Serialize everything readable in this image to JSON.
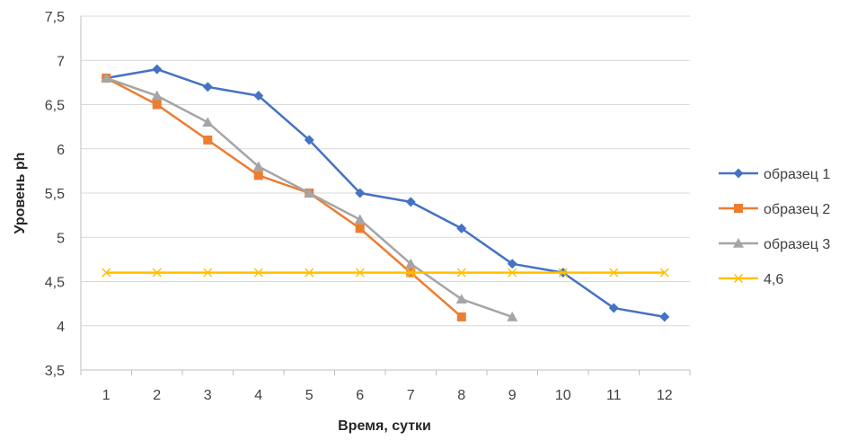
{
  "chart_data": {
    "type": "line",
    "title": "",
    "xlabel": "Время, сутки",
    "ylabel": "Уровень ph",
    "x": [
      1,
      2,
      3,
      4,
      5,
      6,
      7,
      8,
      9,
      10,
      11,
      12
    ],
    "xlim": [
      0.5,
      12.5
    ],
    "ylim": [
      3.5,
      7.5
    ],
    "yticks": [
      "3,5",
      "4",
      "4,5",
      "5",
      "5,5",
      "6",
      "6,5",
      "7",
      "7,5"
    ],
    "ytick_values": [
      3.5,
      4,
      4.5,
      5,
      5.5,
      6,
      6.5,
      7,
      7.5
    ],
    "xticks": [
      "1",
      "2",
      "3",
      "4",
      "5",
      "6",
      "7",
      "8",
      "9",
      "10",
      "11",
      "12"
    ],
    "grid": "horizontal",
    "legend_position": "right",
    "series": [
      {
        "name": "образец 1",
        "color": "#4472C4",
        "marker": "diamond",
        "values": [
          6.8,
          6.9,
          6.7,
          6.6,
          6.1,
          5.5,
          5.4,
          5.1,
          4.7,
          4.6,
          4.2,
          4.1
        ]
      },
      {
        "name": "образец 2",
        "color": "#ED7D31",
        "marker": "square",
        "values": [
          6.8,
          6.5,
          6.1,
          5.7,
          5.5,
          5.1,
          4.6,
          4.1,
          null,
          null,
          null,
          null
        ]
      },
      {
        "name": "образец 3",
        "color": "#A5A5A5",
        "marker": "triangle",
        "values": [
          6.8,
          6.6,
          6.3,
          5.8,
          5.5,
          5.2,
          4.7,
          4.3,
          4.1,
          null,
          null,
          null
        ]
      },
      {
        "name": "4,6",
        "color": "#FFC000",
        "marker": "x",
        "values": [
          4.6,
          4.6,
          4.6,
          4.6,
          4.6,
          4.6,
          4.6,
          4.6,
          4.6,
          4.6,
          4.6,
          4.6
        ]
      }
    ]
  }
}
